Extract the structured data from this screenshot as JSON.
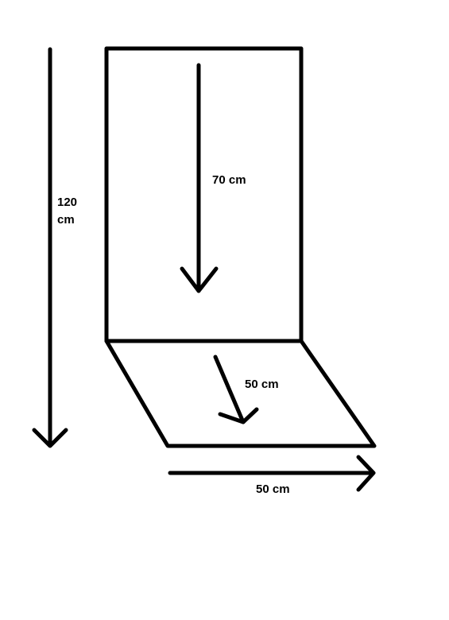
{
  "diagram": {
    "stroke_color": "#000000",
    "background_color": "#ffffff",
    "labels": {
      "total_height": "120\ncm",
      "back_height": "70 cm",
      "seat_depth": "50 cm",
      "width": "50 cm"
    }
  }
}
